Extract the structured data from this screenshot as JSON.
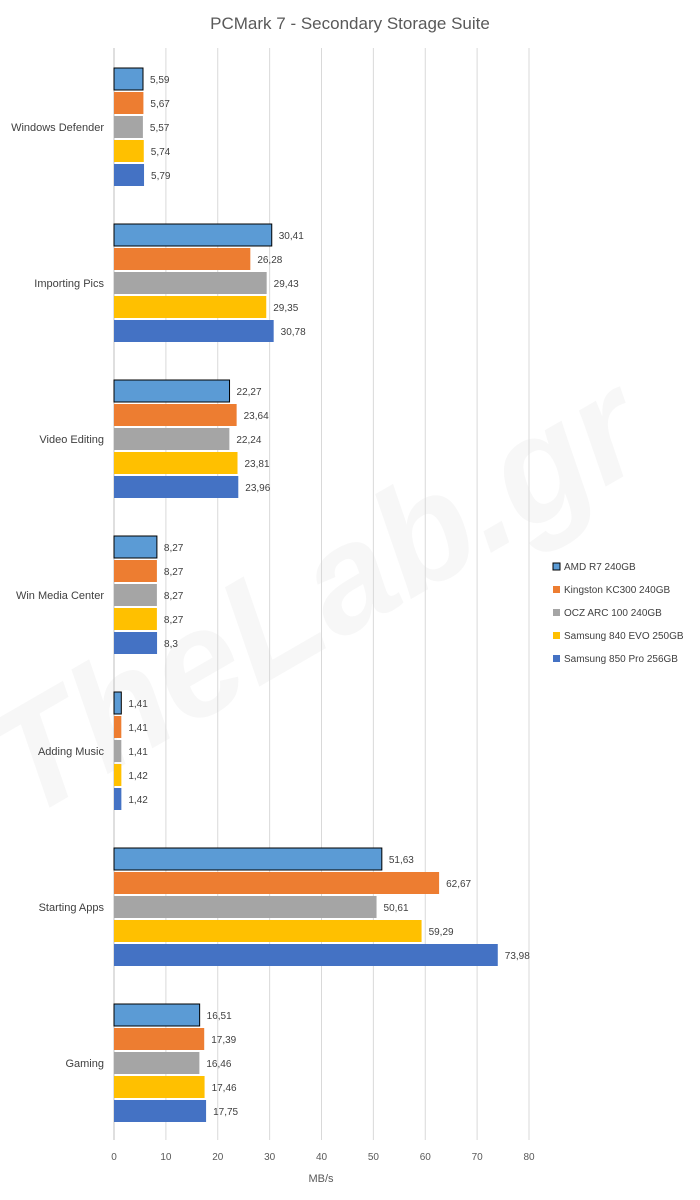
{
  "chart_data": {
    "type": "bar",
    "orientation": "horizontal",
    "title": "PCMark 7 - Secondary Storage Suite",
    "xlabel": "MB/s",
    "ylabel": "",
    "xlim": [
      0,
      80
    ],
    "ticks": [
      0,
      10,
      20,
      30,
      40,
      50,
      60,
      70,
      80
    ],
    "grid": true,
    "legend_position": "right",
    "watermark": "TheLab.gr",
    "categories": [
      "Windows Defender",
      "Importing Pics",
      "Video Editing",
      "Win Media Center",
      "Adding Music",
      "Starting Apps",
      "Gaming"
    ],
    "series": [
      {
        "name": "AMD R7 240GB",
        "color": "#5b9bd5",
        "outlined": true,
        "values": [
          5.59,
          30.41,
          22.27,
          8.27,
          1.41,
          51.63,
          16.51
        ],
        "labels": [
          "5,59",
          "30,41",
          "22,27",
          "8,27",
          "1,41",
          "51,63",
          "16,51"
        ]
      },
      {
        "name": "Kingston KC300 240GB",
        "color": "#ed7d31",
        "outlined": false,
        "values": [
          5.67,
          26.28,
          23.64,
          8.27,
          1.41,
          62.67,
          17.39
        ],
        "labels": [
          "5,67",
          "26,28",
          "23,64",
          "8,27",
          "1,41",
          "62,67",
          "17,39"
        ]
      },
      {
        "name": "OCZ ARC 100 240GB",
        "color": "#a5a5a5",
        "outlined": false,
        "values": [
          5.57,
          29.43,
          22.24,
          8.27,
          1.41,
          50.61,
          16.46
        ],
        "labels": [
          "5,57",
          "29,43",
          "22,24",
          "8,27",
          "1,41",
          "50,61",
          "16,46"
        ]
      },
      {
        "name": "Samsung 840 EVO 250GB",
        "color": "#ffc000",
        "outlined": false,
        "values": [
          5.74,
          29.35,
          23.81,
          8.27,
          1.42,
          59.29,
          17.46
        ],
        "labels": [
          "5,74",
          "29,35",
          "23,81",
          "8,27",
          "1,42",
          "59,29",
          "17,46"
        ]
      },
      {
        "name": "Samsung 850 Pro 256GB",
        "color": "#4472c4",
        "outlined": false,
        "values": [
          5.79,
          30.78,
          23.96,
          8.3,
          1.42,
          73.98,
          17.75
        ],
        "labels": [
          "5,79",
          "30,78",
          "23,96",
          "8,3",
          "1,42",
          "73,98",
          "17,75"
        ]
      }
    ]
  }
}
